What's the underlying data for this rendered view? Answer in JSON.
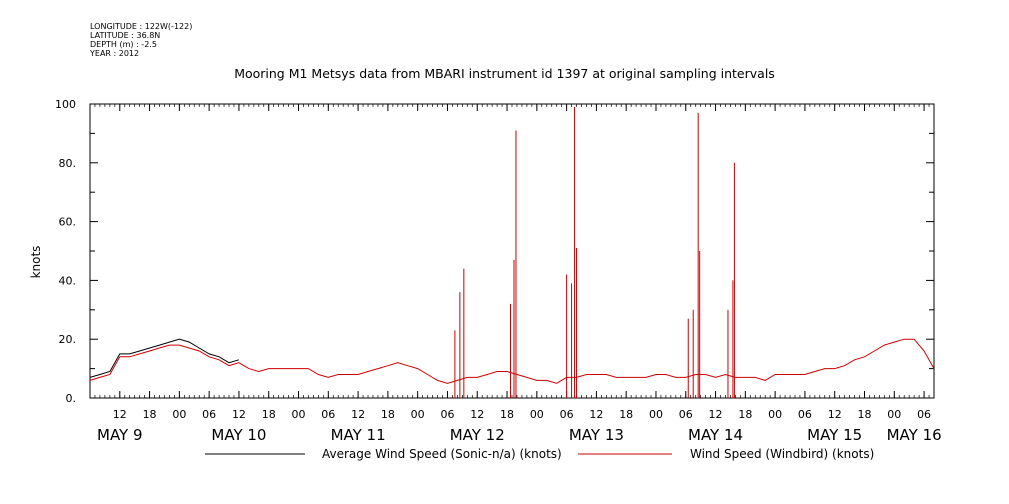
{
  "meta": {
    "longitude": "LONGITUDE : 122W(-122)",
    "latitude": "LATITUDE : 36.8N",
    "depth": "DEPTH (m) : -2.5",
    "year": "YEAR : 2012"
  },
  "chart_data": {
    "type": "line",
    "title": "Mooring M1 Metsys data from MBARI instrument id 1397 at original sampling intervals",
    "ylabel": "knots",
    "xlabel": "",
    "ylim": [
      0,
      100
    ],
    "y_ticks": [
      "0.",
      "20.",
      "40.",
      "60.",
      "80.",
      "100"
    ],
    "x_range_hours": [
      6,
      176
    ],
    "x_hour_ticks": [
      {
        "h": 12,
        "label": "12"
      },
      {
        "h": 18,
        "label": "18"
      },
      {
        "h": 24,
        "label": "00"
      },
      {
        "h": 30,
        "label": "06"
      },
      {
        "h": 36,
        "label": "12"
      },
      {
        "h": 42,
        "label": "18"
      },
      {
        "h": 48,
        "label": "00"
      },
      {
        "h": 54,
        "label": "06"
      },
      {
        "h": 60,
        "label": "12"
      },
      {
        "h": 66,
        "label": "18"
      },
      {
        "h": 72,
        "label": "00"
      },
      {
        "h": 78,
        "label": "06"
      },
      {
        "h": 84,
        "label": "12"
      },
      {
        "h": 90,
        "label": "18"
      },
      {
        "h": 96,
        "label": "00"
      },
      {
        "h": 102,
        "label": "06"
      },
      {
        "h": 108,
        "label": "12"
      },
      {
        "h": 114,
        "label": "18"
      },
      {
        "h": 120,
        "label": "00"
      },
      {
        "h": 126,
        "label": "06"
      },
      {
        "h": 132,
        "label": "12"
      },
      {
        "h": 138,
        "label": "18"
      },
      {
        "h": 144,
        "label": "00"
      },
      {
        "h": 150,
        "label": "06"
      },
      {
        "h": 156,
        "label": "12"
      },
      {
        "h": 162,
        "label": "18"
      },
      {
        "h": 168,
        "label": "00"
      },
      {
        "h": 174,
        "label": "06"
      }
    ],
    "day_labels": [
      {
        "h": 12,
        "label": "MAY  9"
      },
      {
        "h": 36,
        "label": "MAY 10"
      },
      {
        "h": 60,
        "label": "MAY 11"
      },
      {
        "h": 84,
        "label": "MAY 12"
      },
      {
        "h": 108,
        "label": "MAY 13"
      },
      {
        "h": 132,
        "label": "MAY 14"
      },
      {
        "h": 156,
        "label": "MAY 15"
      },
      {
        "h": 172,
        "label": "MAY 16"
      }
    ],
    "legend_placement": "bottom",
    "series": [
      {
        "name": "Average Wind Speed (Sonic-n/a) (knots)",
        "color": "#000000",
        "x": [
          6,
          8,
          10,
          12,
          14,
          16,
          18,
          20,
          22,
          24,
          26,
          28,
          30,
          32,
          34,
          36
        ],
        "y": [
          7,
          8,
          9,
          15,
          15,
          16,
          17,
          18,
          19,
          20,
          19,
          17,
          15,
          14,
          12,
          13
        ]
      },
      {
        "name": "Wind Speed (Windbird) (knots)",
        "color": "#cc0000",
        "x": [
          6,
          8,
          10,
          12,
          14,
          16,
          18,
          20,
          22,
          24,
          26,
          28,
          30,
          32,
          34,
          36,
          38,
          40,
          42,
          44,
          46,
          48,
          50,
          52,
          54,
          56,
          58,
          60,
          62,
          64,
          66,
          68,
          70,
          72,
          74,
          76,
          78,
          80,
          82,
          84,
          86,
          88,
          90,
          92,
          94,
          96,
          98,
          100,
          102,
          104,
          106,
          108,
          110,
          112,
          114,
          116,
          118,
          120,
          122,
          124,
          126,
          128,
          130,
          132,
          134,
          136,
          138,
          140,
          142,
          144,
          146,
          148,
          150,
          152,
          154,
          156,
          158,
          160,
          162,
          164,
          166,
          168,
          170,
          172,
          174,
          176
        ],
        "y": [
          6,
          7,
          8,
          14,
          14,
          15,
          16,
          17,
          18,
          18,
          17,
          16,
          14,
          13,
          11,
          12,
          10,
          9,
          10,
          10,
          10,
          10,
          10,
          8,
          7,
          8,
          8,
          8,
          9,
          10,
          11,
          12,
          11,
          10,
          8,
          6,
          5,
          6,
          7,
          7,
          8,
          9,
          9,
          8,
          7,
          6,
          6,
          5,
          7,
          7,
          8,
          8,
          8,
          7,
          7,
          7,
          7,
          8,
          8,
          7,
          7,
          8,
          8,
          7,
          8,
          7,
          7,
          7,
          6,
          8,
          8,
          8,
          8,
          9,
          10,
          10,
          11,
          13,
          14,
          16,
          18,
          19,
          20,
          20,
          16,
          10
        ]
      }
    ],
    "spikes": [
      {
        "x": 79.5,
        "y": 23
      },
      {
        "x": 80.5,
        "y": 36
      },
      {
        "x": 81.3,
        "y": 44
      },
      {
        "x": 90.7,
        "y": 32
      },
      {
        "x": 91.4,
        "y": 47
      },
      {
        "x": 91.8,
        "y": 91
      },
      {
        "x": 102.0,
        "y": 42
      },
      {
        "x": 103.0,
        "y": 39
      },
      {
        "x": 103.6,
        "y": 99
      },
      {
        "x": 104.0,
        "y": 51
      },
      {
        "x": 126.5,
        "y": 27
      },
      {
        "x": 127.5,
        "y": 30
      },
      {
        "x": 128.5,
        "y": 97
      },
      {
        "x": 128.8,
        "y": 50
      },
      {
        "x": 134.5,
        "y": 30
      },
      {
        "x": 135.5,
        "y": 40
      },
      {
        "x": 135.8,
        "y": 80
      }
    ]
  }
}
